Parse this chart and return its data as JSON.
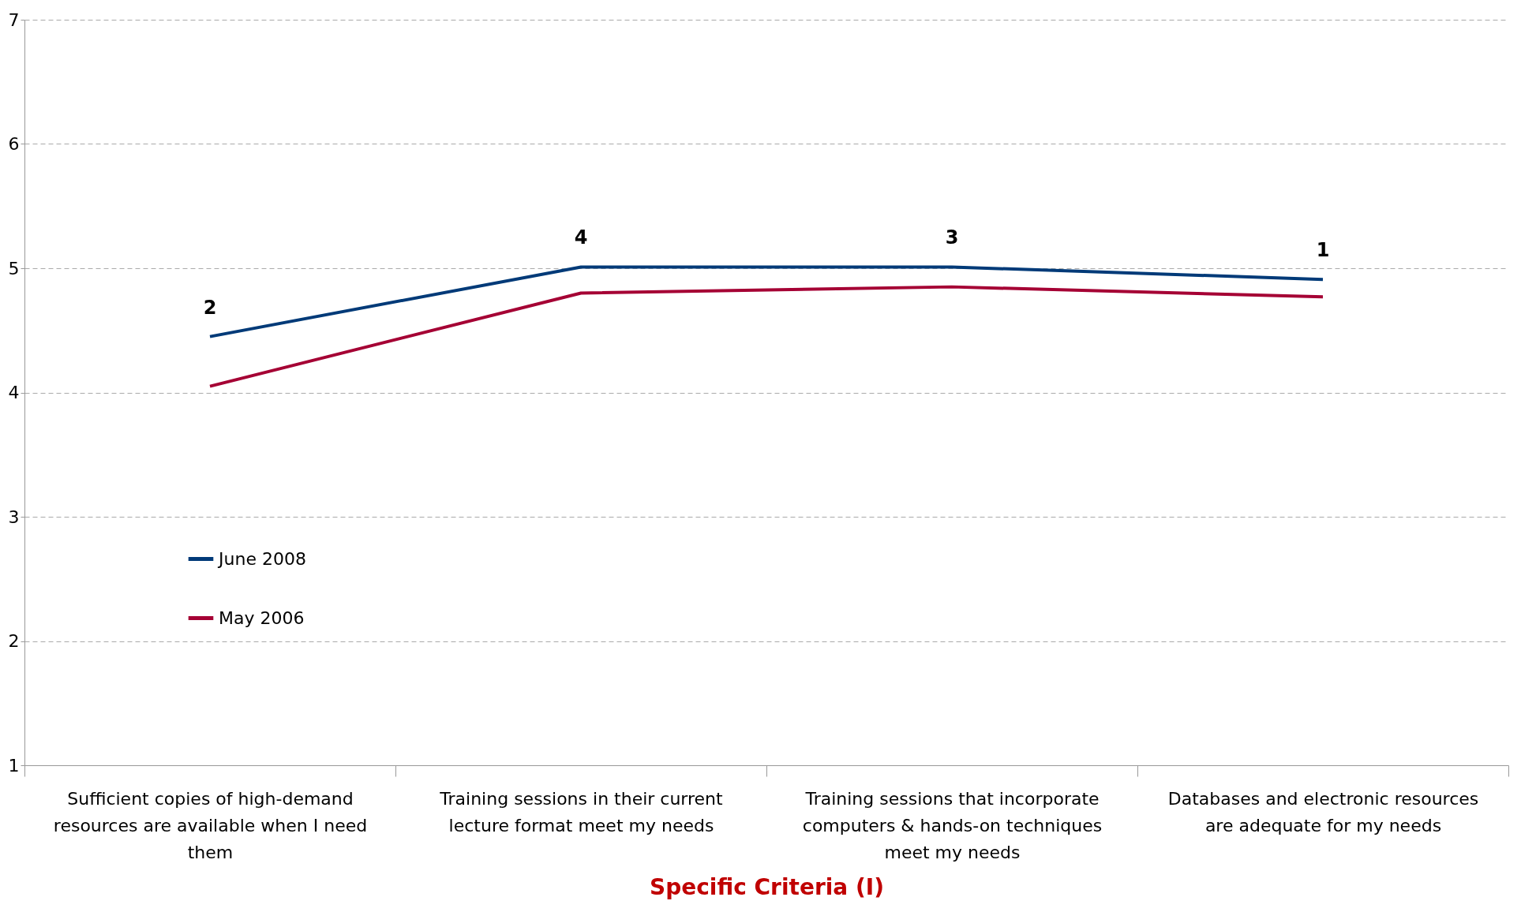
{
  "chart_data": {
    "type": "line",
    "xlabel": "Specific Criteria (I)",
    "categories": [
      "Sufficient copies of high-demand resources are available when I need them",
      "Training sessions in their current lecture format meet my needs",
      "Training sessions that incorporate computers & hands-on techniques meet my needs",
      "Databases and electronic resources are adequate for my needs"
    ],
    "series": [
      {
        "name": "June 2008",
        "color": "#003a78",
        "values": [
          4.45,
          5.01,
          5.01,
          4.91
        ]
      },
      {
        "name": "May 2006",
        "color": "#a50034",
        "values": [
          4.05,
          4.8,
          4.85,
          4.77
        ]
      }
    ],
    "ylim": [
      1,
      7
    ],
    "yticks": [
      1,
      2,
      3,
      4,
      5,
      6,
      7
    ],
    "grid": "y",
    "legend": "bottom left",
    "marker": "none",
    "line_style": "solid",
    "annotations": [
      {
        "text": "2",
        "x": "Sufficient copies of high-demand resources are available when I need them",
        "y": 4.45
      },
      {
        "text": "4",
        "x": "Training sessions in their current lecture format meet my needs",
        "y": 5.01
      },
      {
        "text": "3",
        "x": "Training sessions that incorporate computers & hands-on techniques meet my needs",
        "y": 5.01
      },
      {
        "text": "1",
        "x": "Databases and electronic resources are adequate for my needs",
        "y": 4.91
      }
    ]
  }
}
